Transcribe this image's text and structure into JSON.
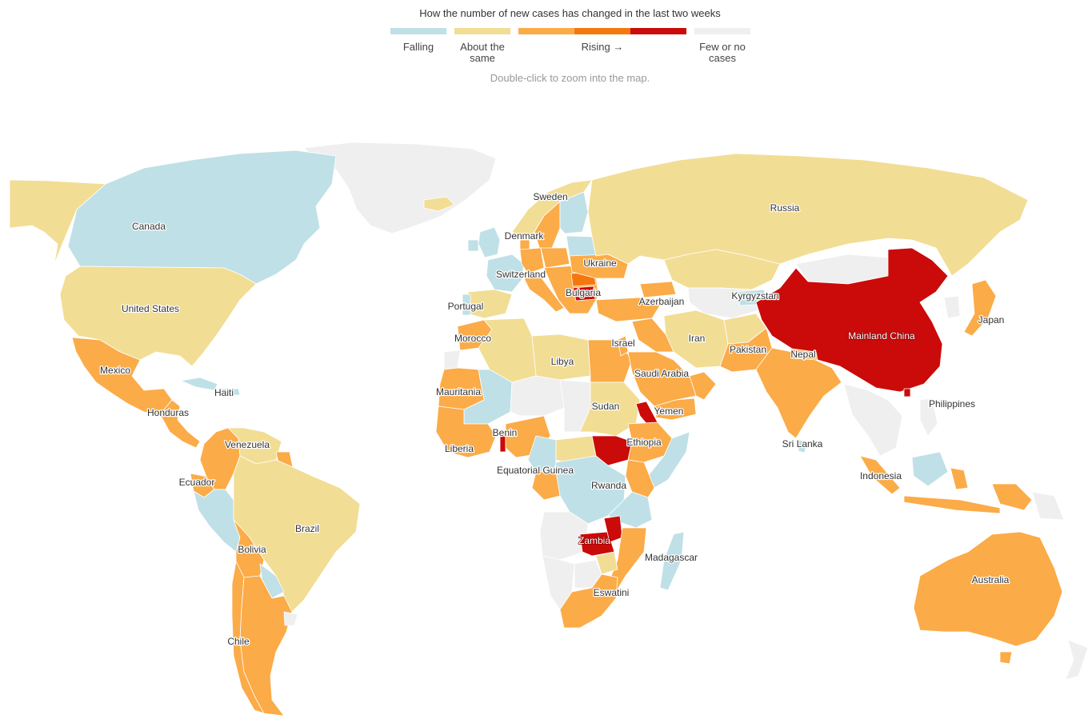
{
  "legend": {
    "title": "How the number of new cases has changed in the last two weeks",
    "hint": "Double-click to zoom into the map.",
    "labels": {
      "falling": "Falling",
      "about_line1": "About the",
      "about_line2": "same",
      "rising": "Rising →",
      "few_line1": "Few or no",
      "few_line2": "cases"
    },
    "colors": {
      "falling": "#bfe0e6",
      "about_same": "#f2dd94",
      "rising_1": "#fbab47",
      "rising_2": "#f5780f",
      "rising_3": "#cb0a0a",
      "few_or_none": "#efefef"
    }
  },
  "countries": {
    "canada": "Canada",
    "united_states": "United States",
    "mexico": "Mexico",
    "haiti": "Haiti",
    "honduras": "Honduras",
    "venezuela": "Venezuela",
    "ecuador": "Ecuador",
    "brazil": "Brazil",
    "bolivia": "Bolivia",
    "chile": "Chile",
    "sweden": "Sweden",
    "denmark": "Denmark",
    "ukraine": "Ukraine",
    "switzerland": "Switzerland",
    "bulgaria": "Bulgaria",
    "portugal": "Portugal",
    "russia": "Russia",
    "azerbaijan": "Azerbaijan",
    "kyrgyzstan": "Kyrgyzstan",
    "morocco": "Morocco",
    "libya": "Libya",
    "israel": "Israel",
    "iran": "Iran",
    "pakistan": "Pakistan",
    "nepal": "Nepal",
    "mainland_china": "Mainland China",
    "japan": "Japan",
    "mauritania": "Mauritania",
    "sudan": "Sudan",
    "saudi_arabia": "Saudi Arabia",
    "yemen": "Yemen",
    "benin": "Benin",
    "liberia": "Liberia",
    "ethiopia": "Ethiopia",
    "equatorial_guinea": "Equatorial Guinea",
    "rwanda": "Rwanda",
    "zambia": "Zambia",
    "madagascar": "Madagascar",
    "eswatini": "Eswatini",
    "sri_lanka": "Sri Lanka",
    "philippines": "Philippines",
    "indonesia": "Indonesia",
    "australia": "Australia"
  }
}
